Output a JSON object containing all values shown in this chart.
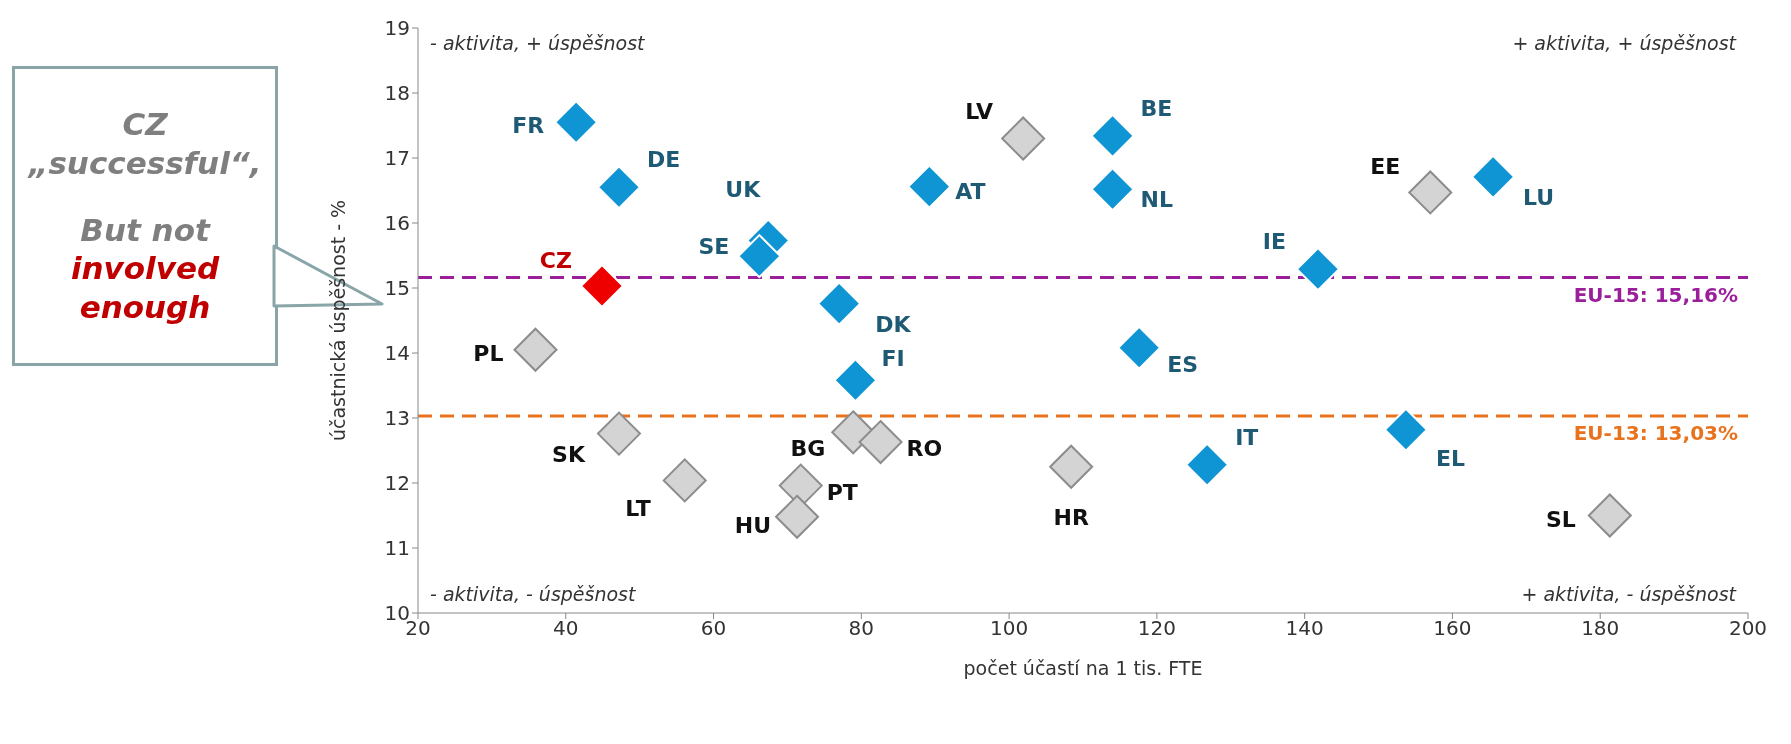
{
  "chart_data": {
    "type": "scatter",
    "xlabel": "počet účastí na 1 tis. FTE",
    "ylabel": "účastnická úspěšnost - %",
    "xlim": [
      20,
      200
    ],
    "xticks": [
      20,
      40,
      60,
      80,
      100,
      120,
      140,
      160,
      180,
      200
    ],
    "ylim": [
      10,
      19
    ],
    "yticks": [
      10,
      11,
      12,
      13,
      14,
      15,
      16,
      17,
      18,
      19
    ],
    "marker": "diamond",
    "grid": false,
    "legend": false,
    "series": [
      {
        "color": "#0f95d4",
        "x": [
          41.4,
          47.2,
          67.4,
          66.2,
          77.0,
          79.2,
          89.2,
          114.0,
          114.0,
          117.6,
          141.8,
          165.5,
          153.7,
          126.8
        ],
        "values": [
          17.55,
          16.55,
          15.73,
          15.49,
          14.76,
          13.58,
          16.56,
          17.34,
          16.52,
          14.08,
          15.29,
          16.71,
          12.82,
          12.28
        ]
      },
      {
        "color": "#d4d4d4",
        "x": [
          101.9,
          157.0,
          35.9,
          47.2,
          56.1,
          78.9,
          82.6,
          71.8,
          71.3,
          108.4,
          181.3
        ],
        "values": [
          17.3,
          16.47,
          14.05,
          12.76,
          12.04,
          12.78,
          12.63,
          11.96,
          11.48,
          12.25,
          11.5
        ]
      },
      {
        "color": "#ee0000",
        "x": [
          44.9
        ],
        "values": [
          15.03
        ]
      }
    ],
    "ref_lines": [
      {
        "axis": "y",
        "value": 15.16,
        "label": "EU-15: 15,16%",
        "color": "#9b1f9b",
        "line_style": "dashed"
      },
      {
        "axis": "y",
        "value": 13.03,
        "label": "EU-13: 13,03%",
        "color": "#e8731e",
        "line_style": "dashed"
      }
    ],
    "annotations": [
      "- aktivita, + úspěšnost",
      "+ aktivita, + úspěšnost",
      "- aktivita, - úspěšnost",
      "+ aktivita, - úspěšnost",
      "CZ „successful“,",
      "But not",
      "involved enough",
      {
        "text": "FR",
        "x": 41.4,
        "y": 17.55
      },
      {
        "text": "DE",
        "x": 47.2,
        "y": 16.55
      },
      {
        "text": "UK",
        "x": 67.4,
        "y": 15.73
      },
      {
        "text": "SE",
        "x": 66.2,
        "y": 15.49
      },
      {
        "text": "DK",
        "x": 77.0,
        "y": 14.76
      },
      {
        "text": "FI",
        "x": 79.2,
        "y": 13.58
      },
      {
        "text": "AT",
        "x": 89.2,
        "y": 16.56
      },
      {
        "text": "BE",
        "x": 114.0,
        "y": 17.34
      },
      {
        "text": "NL",
        "x": 114.0,
        "y": 16.52
      },
      {
        "text": "ES",
        "x": 117.6,
        "y": 14.08
      },
      {
        "text": "IE",
        "x": 141.8,
        "y": 15.29
      },
      {
        "text": "LU",
        "x": 165.5,
        "y": 16.71
      },
      {
        "text": "EL",
        "x": 153.7,
        "y": 12.82
      },
      {
        "text": "IT",
        "x": 126.8,
        "y": 12.28
      },
      {
        "text": "LV",
        "x": 101.9,
        "y": 17.3
      },
      {
        "text": "EE",
        "x": 157.0,
        "y": 16.47
      },
      {
        "text": "PL",
        "x": 35.9,
        "y": 14.05
      },
      {
        "text": "SK",
        "x": 47.2,
        "y": 12.76
      },
      {
        "text": "LT",
        "x": 56.1,
        "y": 12.04
      },
      {
        "text": "BG",
        "x": 78.9,
        "y": 12.78
      },
      {
        "text": "RO",
        "x": 82.6,
        "y": 12.63
      },
      {
        "text": "PT",
        "x": 71.8,
        "y": 11.96
      },
      {
        "text": "HU",
        "x": 71.3,
        "y": 11.48
      },
      {
        "text": "HR",
        "x": 108.4,
        "y": 12.25
      },
      {
        "text": "SL",
        "x": 181.3,
        "y": 11.5
      },
      {
        "text": "CZ",
        "x": 44.9,
        "y": 15.03
      }
    ]
  }
}
